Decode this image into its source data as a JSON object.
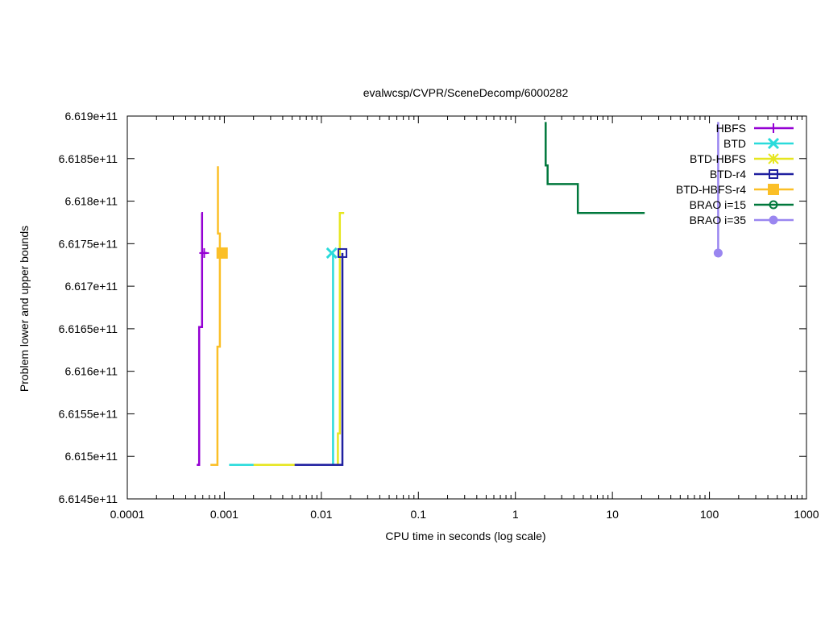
{
  "chart_data": {
    "type": "line",
    "title": "evalwcsp/CVPR/SceneDecomp/6000282",
    "xlabel": "CPU time in seconds (log scale)",
    "ylabel": "Problem lower and upper bounds",
    "x_scale": "log",
    "xlim": [
      0.0001,
      1000
    ],
    "ylim": [
      661450000000,
      661900000000
    ],
    "x_ticks": [
      0.0001,
      0.001,
      0.01,
      0.1,
      1,
      10,
      100,
      1000
    ],
    "x_tick_labels": [
      "0.0001",
      "0.001",
      "0.01",
      "0.1",
      "1",
      "10",
      "100",
      "1000"
    ],
    "y_ticks": [
      661450000000,
      661500000000,
      661550000000,
      661600000000,
      661650000000,
      661700000000,
      661750000000,
      661800000000,
      661850000000,
      661900000000
    ],
    "y_tick_labels": [
      "6.6145e+11",
      "6.615e+11",
      "6.6155e+11",
      "6.616e+11",
      "6.6165e+11",
      "6.617e+11",
      "6.6175e+11",
      "6.618e+11",
      "6.6185e+11",
      "6.619e+11"
    ],
    "grid": false,
    "legend_position": "top-right",
    "series": [
      {
        "name": "HBFS",
        "color": "#9400d3",
        "marker": "plus",
        "lines": [
          [
            [
              0.00052,
              661490000000
            ],
            [
              0.00055,
              661490000000
            ],
            [
              0.00055,
              661652000000
            ],
            [
              0.00059,
              661652000000
            ],
            [
              0.00059,
              661786000000
            ],
            [
              0.00058,
              661786000000
            ]
          ],
          [
            [
              0.00058,
              661739000000
            ],
            [
              0.00066,
              661739000000
            ]
          ]
        ],
        "markers": [
          [
            0.00062,
            661739000000
          ]
        ]
      },
      {
        "name": "BTD",
        "color": "#2adbdb",
        "marker": "x",
        "lines": [
          [
            [
              0.00112,
              661490000000
            ],
            [
              0.002,
              661490000000
            ],
            [
              0.0125,
              661490000000
            ],
            [
              0.0132,
              661490000000
            ],
            [
              0.0132,
              661739000000
            ]
          ]
        ],
        "markers": [
          [
            0.0128,
            661739000000
          ]
        ]
      },
      {
        "name": "BTD-HBFS",
        "color": "#e6e620",
        "marker": "star",
        "lines": [
          [
            [
              0.002,
              661490000000
            ],
            [
              0.0053,
              661490000000
            ],
            [
              0.0148,
              661490000000
            ],
            [
              0.0148,
              661527000000
            ],
            [
              0.0155,
              661527000000
            ],
            [
              0.0155,
              661786000000
            ],
            [
              0.0172,
              661786000000
            ]
          ]
        ],
        "markers": []
      },
      {
        "name": "BTD-r4",
        "color": "#2020a0",
        "marker": "open-square",
        "lines": [
          [
            [
              0.0053,
              661490000000
            ],
            [
              0.0165,
              661490000000
            ],
            [
              0.0165,
              661739000000
            ]
          ]
        ],
        "markers": [
          [
            0.0165,
            661739000000
          ]
        ]
      },
      {
        "name": "BTD-HBFS-r4",
        "color": "#fbbf27",
        "marker": "filled-square",
        "lines": [
          [
            [
              0.00072,
              661490000000
            ],
            [
              0.00085,
              661490000000
            ],
            [
              0.00085,
              661629000000
            ],
            [
              0.0009,
              661629000000
            ],
            [
              0.0009,
              661762000000
            ],
            [
              0.00086,
              661762000000
            ],
            [
              0.00086,
              661841000000
            ]
          ],
          [
            [
              0.00086,
              661739000000
            ],
            [
              0.00102,
              661739000000
            ]
          ]
        ],
        "markers": [
          [
            0.00095,
            661739000000
          ]
        ]
      },
      {
        "name": "BRAO i=15",
        "color": "#00783c",
        "marker": "open-circle",
        "lines": [
          [
            [
              2.05,
              661893000000
            ],
            [
              2.05,
              661842000000
            ],
            [
              2.15,
              661842000000
            ],
            [
              2.15,
              661820000000
            ],
            [
              4.4,
              661820000000
            ],
            [
              4.4,
              661786000000
            ],
            [
              21.5,
              661786000000
            ]
          ]
        ],
        "markers": []
      },
      {
        "name": "BRAO i=35",
        "color": "#9a86f0",
        "marker": "filled-circle",
        "lines": [
          [
            [
              123,
              661893000000
            ],
            [
              123,
              661739000000
            ]
          ]
        ],
        "markers": [
          [
            123,
            661739000000
          ]
        ]
      }
    ]
  }
}
